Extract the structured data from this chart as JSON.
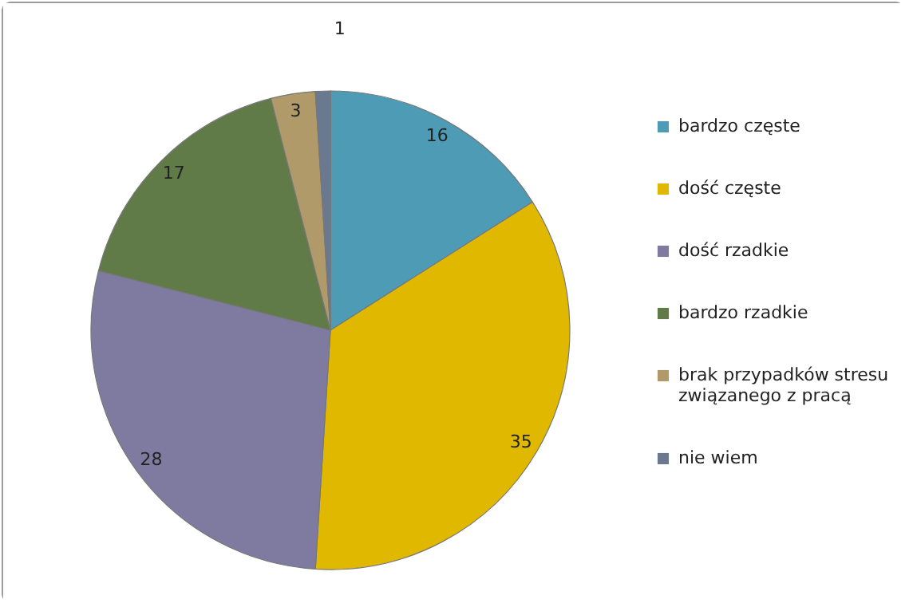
{
  "chart_data": {
    "type": "pie",
    "categories": [
      "bardzo częste",
      "dość częste",
      "dość rzadkie",
      "bardzo rzadkie",
      "brak przypadków stresu związanego z pracą",
      "nie wiem"
    ],
    "values": [
      16,
      35,
      28,
      17,
      3,
      1
    ],
    "colors": [
      "#4e9bb5",
      "#e0b800",
      "#7f7ba0",
      "#607a48",
      "#b09a6a",
      "#6a7890"
    ],
    "data_labels": true,
    "legend": "right"
  }
}
